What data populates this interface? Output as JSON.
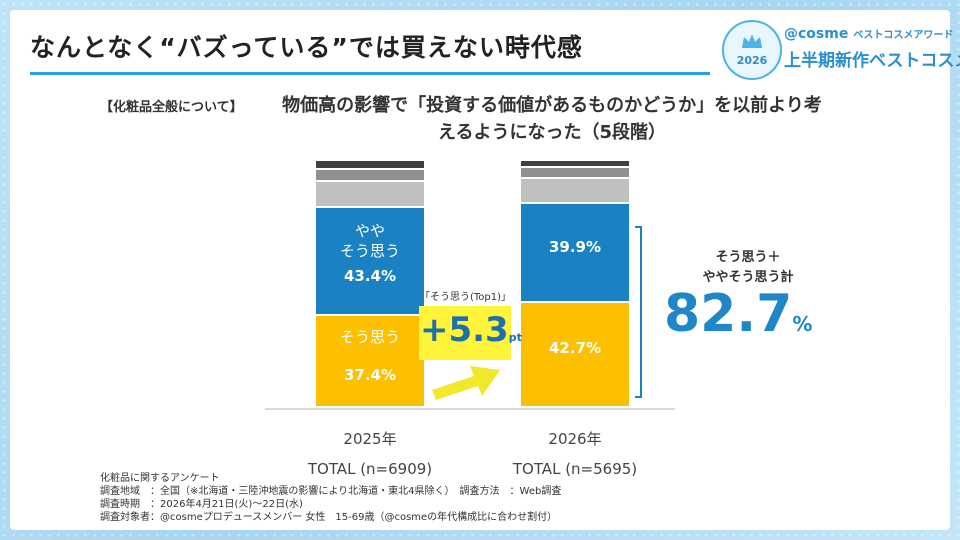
{
  "header": {
    "title": "なんとなく“バズっている”では買えない時代感",
    "brand_at": "@cosme",
    "brand_sub": "ベストコスメアワード",
    "award_title": "上半期新作ベストコスメ",
    "badge_year": "2026"
  },
  "question": {
    "tag": "【化粧品全般について】",
    "text": "物価高の影響で「投資する価値があるものかどうか」を以前より考えるようになった（5段階）"
  },
  "chart_data": {
    "type": "bar",
    "stacked": true,
    "categories": [
      "2025年",
      "2026年"
    ],
    "totals": [
      "TOTAL (n=6909)",
      "TOTAL (n=5695)"
    ],
    "series": [
      {
        "name": "そう思う",
        "values": [
          37.4,
          42.7
        ],
        "color": "#fcc000",
        "labels": [
          "37.4%",
          "42.7%"
        ]
      },
      {
        "name": "ややそう思う",
        "values": [
          43.4,
          39.9
        ],
        "color": "#1a82c3",
        "labels": [
          "43.4%",
          "39.9%"
        ]
      },
      {
        "name": "",
        "values": [
          10.6,
          10.0
        ],
        "color": "#bfbfbf"
      },
      {
        "name": "",
        "values": [
          5.0,
          4.7
        ],
        "color": "#8f8f8f"
      },
      {
        "name": "",
        "values": [
          3.6,
          2.7
        ],
        "color": "#404040"
      }
    ],
    "inline_labels": {
      "yaya": "やや\nそう思う",
      "sou": "そう思う"
    },
    "ylim": [
      0,
      100
    ]
  },
  "callout": {
    "top1_label": "「そう思う(Top1)」",
    "delta_value": "+5.3",
    "delta_unit": "pt"
  },
  "summary": {
    "label_line1": "そう思う＋",
    "label_line2": "ややそう思う計",
    "value": "82.7",
    "unit": "%"
  },
  "notes": {
    "line1": "化粧品に関するアンケート",
    "line2": "調査地域　：全国（※北海道・三陸沖地震の影響により北海道・東北4県除く）　調査方法　：Web調査",
    "line3": "調査時期　：2026年4月21日(火)〜22日(水)",
    "line4": "調査対象者：@cosmeプロデュースメンバー 女性　15-69歳（@cosmeの年代構成比に合わせ割付）"
  }
}
